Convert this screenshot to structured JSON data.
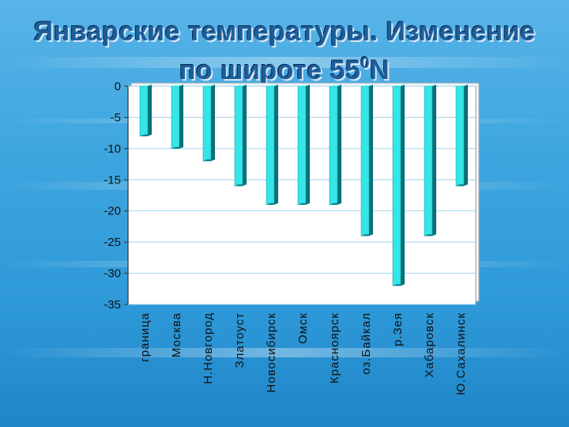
{
  "title": {
    "line1": "Январские температуры. Изменение",
    "line2_prefix": "по широте  55",
    "line2_sup": "0",
    "line2_suffix": "N"
  },
  "chart_data": {
    "type": "bar",
    "title": "Январские температуры. Изменение по широте 55°N",
    "xlabel": "",
    "ylabel": "",
    "ylim": [
      -35,
      0
    ],
    "yticks": [
      0,
      -5,
      -10,
      -15,
      -20,
      -25,
      -30,
      -35
    ],
    "ytick_labels": [
      "0",
      "-5",
      "-10",
      "-15",
      "-20",
      "-25",
      "-30",
      "-35"
    ],
    "grid": true,
    "legend": "none",
    "categories": [
      "граница",
      "Москва",
      "Н.Новгород",
      "Златоуст",
      "Новосибирск",
      "Омск",
      "Красноярск",
      "оз.Байкал",
      "р.Зея",
      "Хабаровск",
      "Ю.Сахалинск"
    ],
    "values": [
      -8,
      -10,
      -12,
      -16,
      -19,
      -19,
      -19,
      -24,
      -32,
      -24,
      -16
    ],
    "colors": {
      "bar_front": "#35e6e6",
      "bar_side": "#0a6f7a",
      "bar_top": "#9ff7f7",
      "grid": "#9ed2ec",
      "axis": "#333333",
      "plot_bg": "#ffffff"
    }
  }
}
